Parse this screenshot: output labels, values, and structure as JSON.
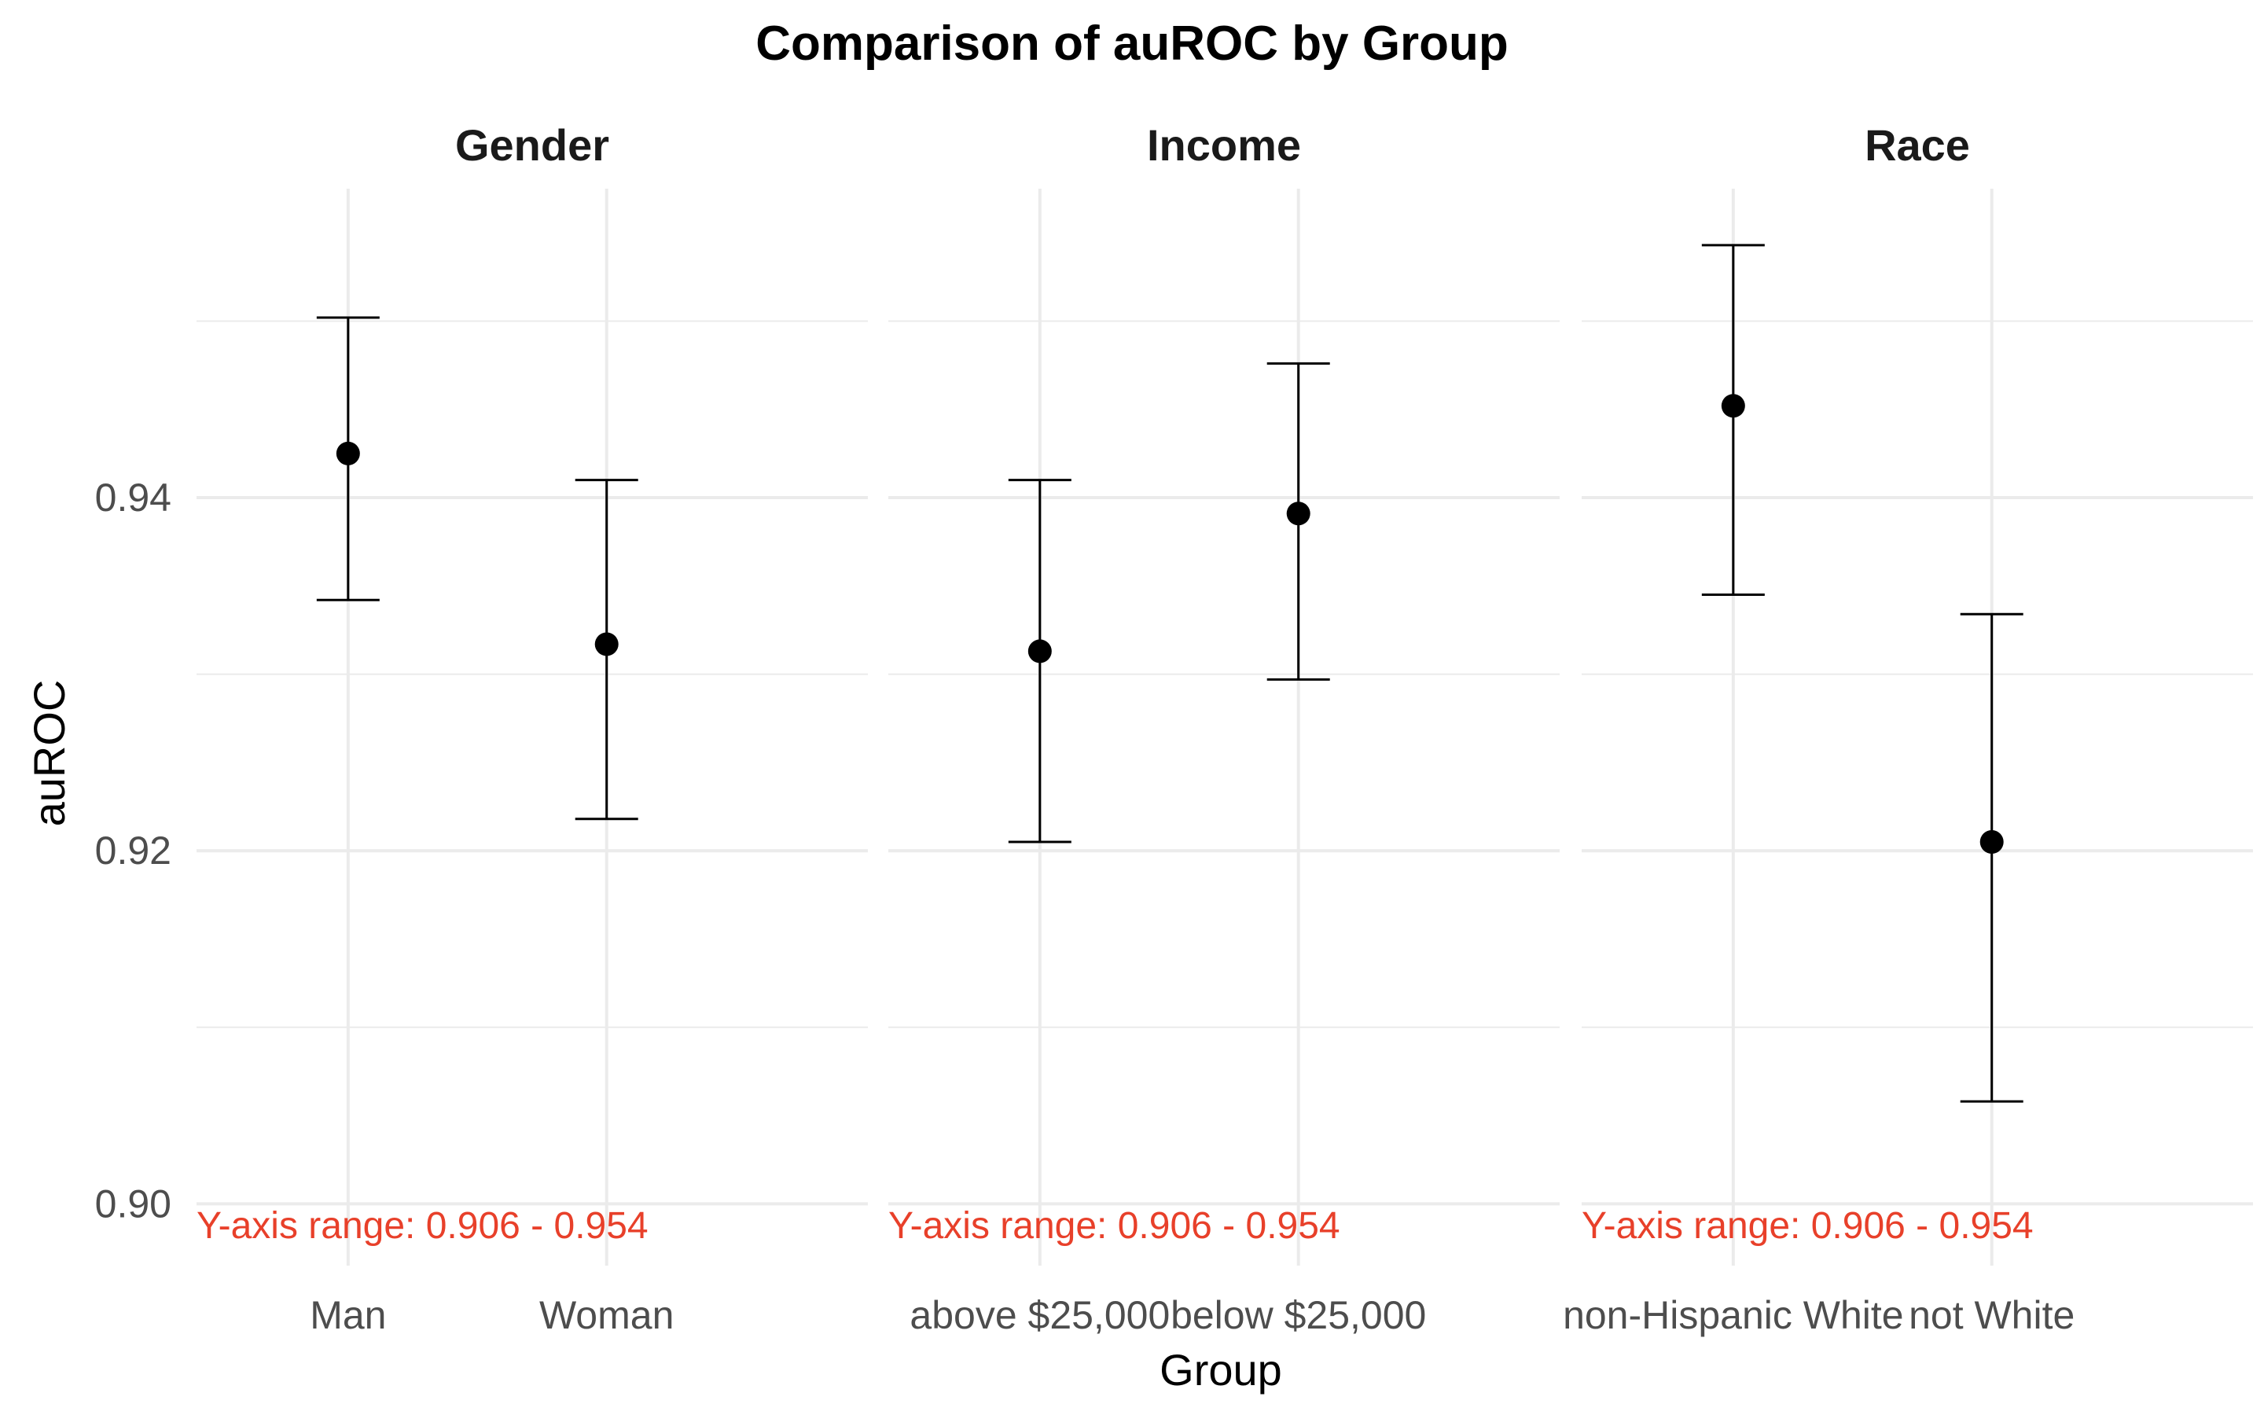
{
  "chart_data": {
    "type": "scatter",
    "title": "Comparison of auROC by Group",
    "xlabel": "Group",
    "ylabel": "auROC",
    "ylim": [
      0.8965,
      0.9575
    ],
    "yticks": [
      "0.90",
      "0.92",
      "0.94"
    ],
    "y_major_values": [
      0.9,
      0.92,
      0.94
    ],
    "y_minor_values": [
      0.91,
      0.93,
      0.95
    ],
    "grid": true,
    "point_color": "#000000",
    "note_color": "#E8402A",
    "panels": [
      {
        "name": "Gender",
        "categories": [
          "Man",
          "Woman"
        ],
        "values": [
          0.9425,
          0.9317
        ],
        "lower": [
          0.9342,
          0.9218
        ],
        "upper": [
          0.9502,
          0.941
        ],
        "note": "Y-axis range: 0.906 - 0.954"
      },
      {
        "name": "Income",
        "categories": [
          "above $25,000",
          "below $25,000"
        ],
        "values": [
          0.9313,
          0.9391
        ],
        "lower": [
          0.9205,
          0.9297
        ],
        "upper": [
          0.941,
          0.9476
        ],
        "note": "Y-axis range: 0.906 - 0.954"
      },
      {
        "name": "Race",
        "categories": [
          "non-Hispanic White",
          "not White"
        ],
        "values": [
          0.9452,
          0.9205
        ],
        "lower": [
          0.9345,
          0.9058
        ],
        "upper": [
          0.9543,
          0.9334
        ],
        "note": "Y-axis range: 0.906 - 0.954"
      }
    ]
  }
}
